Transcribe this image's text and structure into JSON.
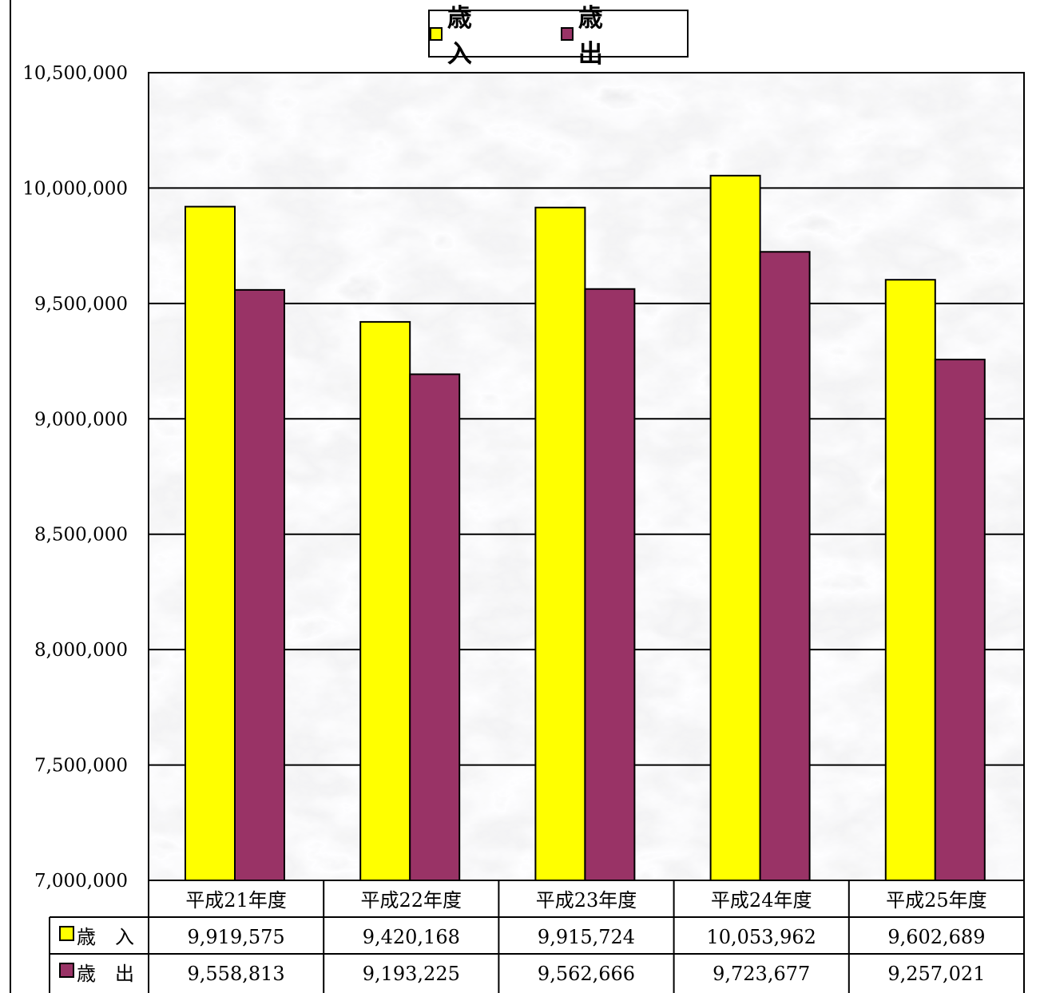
{
  "chart_data": {
    "type": "bar",
    "categories": [
      "平成21年度",
      "平成22年度",
      "平成23年度",
      "平成24年度",
      "平成25年度"
    ],
    "series": [
      {
        "name": "歳 入",
        "color": "#ffff00",
        "values": [
          9919575,
          9420168,
          9915724,
          10053962,
          9602689
        ],
        "display": [
          "9,919,575",
          "9,420,168",
          "9,915,724",
          "10,053,962",
          "9,602,689"
        ]
      },
      {
        "name": "歳 出",
        "color": "#993366",
        "values": [
          9558813,
          9193225,
          9562666,
          9723677,
          9257021
        ],
        "display": [
          "9,558,813",
          "9,193,225",
          "9,562,666",
          "9,723,677",
          "9,257,021"
        ]
      }
    ],
    "ylim": [
      7000000,
      10500000
    ],
    "yticks": [
      "7,000,000",
      "7,500,000",
      "8,000,000",
      "8,500,000",
      "9,000,000",
      "9,500,000",
      "10,000,000",
      "10,500,000"
    ],
    "grid": true,
    "legend_position": "top-center",
    "background": "gray marble texture",
    "data_table": true
  },
  "legend": {
    "items": [
      {
        "label": "歳　入",
        "color": "#ffff00"
      },
      {
        "label": "歳　出",
        "color": "#993366"
      }
    ]
  },
  "table": {
    "row_labels": [
      "歳　入",
      "歳　出"
    ]
  }
}
